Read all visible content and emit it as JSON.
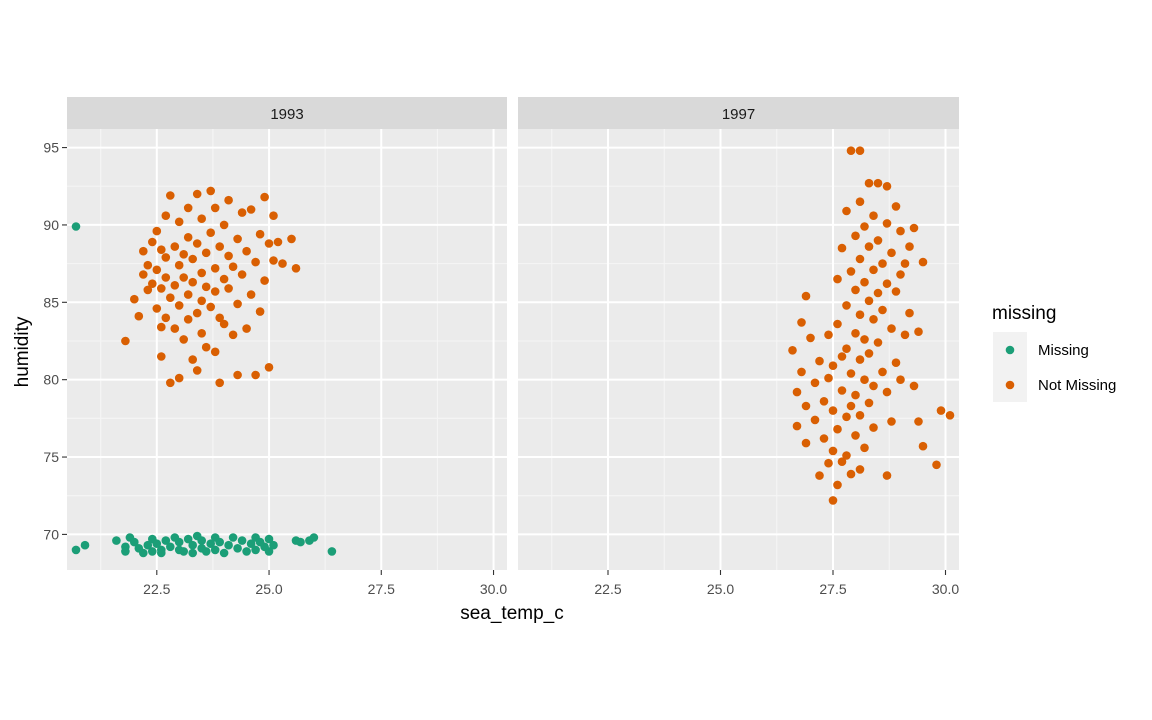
{
  "chart_data": {
    "type": "scatter",
    "xlabel": "sea_temp_c",
    "ylabel": "humidity",
    "xlim": [
      20.5,
      30.3
    ],
    "ylim": [
      67.7,
      96.2
    ],
    "x_ticks": [
      "22.5",
      "25.0",
      "27.5",
      "30.0"
    ],
    "y_ticks": [
      "70",
      "75",
      "80",
      "85",
      "90",
      "95"
    ],
    "grid": true,
    "legend": {
      "title": "missing",
      "position": "right",
      "entries": [
        {
          "label": "Missing",
          "color": "#1B9E77"
        },
        {
          "label": "Not Missing",
          "color": "#D95F02"
        }
      ]
    },
    "facets": [
      {
        "label": "1993",
        "series": [
          {
            "name": "Missing",
            "points": [
              [
                20.7,
                89.9
              ],
              [
                20.7,
                69.0
              ],
              [
                20.9,
                69.3
              ],
              [
                21.6,
                69.6
              ],
              [
                21.8,
                69.2
              ],
              [
                21.8,
                68.9
              ],
              [
                21.9,
                69.8
              ],
              [
                22.0,
                69.5
              ],
              [
                22.1,
                69.1
              ],
              [
                22.2,
                68.8
              ],
              [
                22.3,
                69.3
              ],
              [
                22.4,
                69.7
              ],
              [
                22.4,
                68.9
              ],
              [
                22.5,
                69.4
              ],
              [
                22.6,
                69.0
              ],
              [
                22.6,
                68.8
              ],
              [
                22.7,
                69.6
              ],
              [
                22.8,
                69.2
              ],
              [
                22.9,
                69.8
              ],
              [
                23.0,
                69.0
              ],
              [
                23.0,
                69.5
              ],
              [
                23.1,
                68.9
              ],
              [
                23.2,
                69.7
              ],
              [
                23.3,
                69.3
              ],
              [
                23.3,
                68.8
              ],
              [
                23.4,
                69.9
              ],
              [
                23.5,
                69.1
              ],
              [
                23.5,
                69.6
              ],
              [
                23.6,
                68.9
              ],
              [
                23.7,
                69.4
              ],
              [
                23.8,
                69.8
              ],
              [
                23.8,
                69.0
              ],
              [
                23.9,
                69.5
              ],
              [
                24.0,
                68.8
              ],
              [
                24.1,
                69.3
              ],
              [
                24.2,
                69.8
              ],
              [
                24.3,
                69.1
              ],
              [
                24.4,
                69.6
              ],
              [
                24.5,
                68.9
              ],
              [
                24.6,
                69.4
              ],
              [
                24.7,
                69.8
              ],
              [
                24.7,
                69.0
              ],
              [
                24.8,
                69.5
              ],
              [
                24.9,
                69.2
              ],
              [
                25.0,
                69.7
              ],
              [
                25.0,
                68.9
              ],
              [
                25.1,
                69.3
              ],
              [
                25.6,
                69.6
              ],
              [
                25.7,
                69.5
              ],
              [
                25.9,
                69.6
              ],
              [
                26.0,
                69.8
              ],
              [
                26.4,
                68.9
              ]
            ]
          },
          {
            "name": "Not Missing",
            "points": [
              [
                21.8,
                82.5
              ],
              [
                22.0,
                85.2
              ],
              [
                22.1,
                84.1
              ],
              [
                22.2,
                86.8
              ],
              [
                22.2,
                88.3
              ],
              [
                22.3,
                85.8
              ],
              [
                22.3,
                87.4
              ],
              [
                22.4,
                86.2
              ],
              [
                22.4,
                88.9
              ],
              [
                22.5,
                84.6
              ],
              [
                22.5,
                87.1
              ],
              [
                22.5,
                89.6
              ],
              [
                22.6,
                83.4
              ],
              [
                22.6,
                85.9
              ],
              [
                22.6,
                88.4
              ],
              [
                22.6,
                81.5
              ],
              [
                22.7,
                86.6
              ],
              [
                22.7,
                90.6
              ],
              [
                22.7,
                84.0
              ],
              [
                22.7,
                87.9
              ],
              [
                22.8,
                91.9
              ],
              [
                22.8,
                79.8
              ],
              [
                22.8,
                85.3
              ],
              [
                22.9,
                88.6
              ],
              [
                22.9,
                86.1
              ],
              [
                22.9,
                83.3
              ],
              [
                23.0,
                90.2
              ],
              [
                23.0,
                87.4
              ],
              [
                23.0,
                80.1
              ],
              [
                23.0,
                84.8
              ],
              [
                23.1,
                88.1
              ],
              [
                23.1,
                86.6
              ],
              [
                23.1,
                82.6
              ],
              [
                23.2,
                91.1
              ],
              [
                23.2,
                89.2
              ],
              [
                23.2,
                85.5
              ],
              [
                23.2,
                83.9
              ],
              [
                23.3,
                87.8
              ],
              [
                23.3,
                81.3
              ],
              [
                23.3,
                86.3
              ],
              [
                23.4,
                92.0
              ],
              [
                23.4,
                84.3
              ],
              [
                23.4,
                88.8
              ],
              [
                23.4,
                80.6
              ],
              [
                23.5,
                86.9
              ],
              [
                23.5,
                83.0
              ],
              [
                23.5,
                90.4
              ],
              [
                23.5,
                85.1
              ],
              [
                23.6,
                88.2
              ],
              [
                23.6,
                82.1
              ],
              [
                23.6,
                86.0
              ],
              [
                23.7,
                92.2
              ],
              [
                23.7,
                84.7
              ],
              [
                23.7,
                89.5
              ],
              [
                23.8,
                87.2
              ],
              [
                23.8,
                81.8
              ],
              [
                23.8,
                85.7
              ],
              [
                23.8,
                91.1
              ],
              [
                23.9,
                79.8
              ],
              [
                23.9,
                88.6
              ],
              [
                23.9,
                84.0
              ],
              [
                24.0,
                86.5
              ],
              [
                24.0,
                90.0
              ],
              [
                24.0,
                83.6
              ],
              [
                24.1,
                88.0
              ],
              [
                24.1,
                85.9
              ],
              [
                24.1,
                91.6
              ],
              [
                24.2,
                82.9
              ],
              [
                24.2,
                87.3
              ],
              [
                24.3,
                80.3
              ],
              [
                24.3,
                89.1
              ],
              [
                24.3,
                84.9
              ],
              [
                24.4,
                86.8
              ],
              [
                24.4,
                90.8
              ],
              [
                24.5,
                88.3
              ],
              [
                24.5,
                83.3
              ],
              [
                24.6,
                85.5
              ],
              [
                24.6,
                91.0
              ],
              [
                24.7,
                87.6
              ],
              [
                24.7,
                80.3
              ],
              [
                24.8,
                89.4
              ],
              [
                24.8,
                84.4
              ],
              [
                24.9,
                86.4
              ],
              [
                24.9,
                91.8
              ],
              [
                25.0,
                88.8
              ],
              [
                25.0,
                80.8
              ],
              [
                25.1,
                90.6
              ],
              [
                25.1,
                87.7
              ],
              [
                25.2,
                88.9
              ],
              [
                25.3,
                87.5
              ],
              [
                25.5,
                89.1
              ],
              [
                25.6,
                87.2
              ]
            ]
          }
        ]
      },
      {
        "label": "1997",
        "series": [
          {
            "name": "Missing",
            "points": []
          },
          {
            "name": "Not Missing",
            "points": [
              [
                26.6,
                81.9
              ],
              [
                26.7,
                79.2
              ],
              [
                26.7,
                77.0
              ],
              [
                26.8,
                83.7
              ],
              [
                26.8,
                80.5
              ],
              [
                26.9,
                78.3
              ],
              [
                26.9,
                75.9
              ],
              [
                26.9,
                85.4
              ],
              [
                27.0,
                82.7
              ],
              [
                27.1,
                79.8
              ],
              [
                27.1,
                77.4
              ],
              [
                27.2,
                73.8
              ],
              [
                27.2,
                81.2
              ],
              [
                27.3,
                78.6
              ],
              [
                27.3,
                76.2
              ],
              [
                27.4,
                80.1
              ],
              [
                27.4,
                74.6
              ],
              [
                27.4,
                82.9
              ],
              [
                27.5,
                72.2
              ],
              [
                27.5,
                78.0
              ],
              [
                27.5,
                75.4
              ],
              [
                27.5,
                80.9
              ],
              [
                27.6,
                86.5
              ],
              [
                27.6,
                83.6
              ],
              [
                27.6,
                76.8
              ],
              [
                27.6,
                73.2
              ],
              [
                27.7,
                88.5
              ],
              [
                27.7,
                81.5
              ],
              [
                27.7,
                79.3
              ],
              [
                27.7,
                74.7
              ],
              [
                27.8,
                90.9
              ],
              [
                27.8,
                84.8
              ],
              [
                27.8,
                82.0
              ],
              [
                27.8,
                77.6
              ],
              [
                27.8,
                75.1
              ],
              [
                27.9,
                87.0
              ],
              [
                27.9,
                80.4
              ],
              [
                27.9,
                78.3
              ],
              [
                27.9,
                73.9
              ],
              [
                27.9,
                94.8
              ],
              [
                28.0,
                89.3
              ],
              [
                28.0,
                85.8
              ],
              [
                28.0,
                83.0
              ],
              [
                28.0,
                79.0
              ],
              [
                28.0,
                76.4
              ],
              [
                28.1,
                91.5
              ],
              [
                28.1,
                87.8
              ],
              [
                28.1,
                84.2
              ],
              [
                28.1,
                81.3
              ],
              [
                28.1,
                77.7
              ],
              [
                28.1,
                74.2
              ],
              [
                28.1,
                94.8
              ],
              [
                28.2,
                89.9
              ],
              [
                28.2,
                86.3
              ],
              [
                28.2,
                82.6
              ],
              [
                28.2,
                80.0
              ],
              [
                28.2,
                75.6
              ],
              [
                28.3,
                92.7
              ],
              [
                28.3,
                88.6
              ],
              [
                28.3,
                85.1
              ],
              [
                28.3,
                81.7
              ],
              [
                28.3,
                78.5
              ],
              [
                28.4,
                90.6
              ],
              [
                28.4,
                87.1
              ],
              [
                28.4,
                83.9
              ],
              [
                28.4,
                79.6
              ],
              [
                28.4,
                76.9
              ],
              [
                28.5,
                92.7
              ],
              [
                28.5,
                89.0
              ],
              [
                28.5,
                85.6
              ],
              [
                28.5,
                82.4
              ],
              [
                28.6,
                87.5
              ],
              [
                28.6,
                84.5
              ],
              [
                28.6,
                80.5
              ],
              [
                28.7,
                92.5
              ],
              [
                28.7,
                90.1
              ],
              [
                28.7,
                86.2
              ],
              [
                28.7,
                79.2
              ],
              [
                28.7,
                73.8
              ],
              [
                28.8,
                88.2
              ],
              [
                28.8,
                83.3
              ],
              [
                28.8,
                77.3
              ],
              [
                28.9,
                91.2
              ],
              [
                28.9,
                85.7
              ],
              [
                28.9,
                81.1
              ],
              [
                29.0,
                89.6
              ],
              [
                29.0,
                86.8
              ],
              [
                29.0,
                80.0
              ],
              [
                29.1,
                87.5
              ],
              [
                29.1,
                82.9
              ],
              [
                29.2,
                88.6
              ],
              [
                29.2,
                84.3
              ],
              [
                29.3,
                89.8
              ],
              [
                29.3,
                79.6
              ],
              [
                29.4,
                83.1
              ],
              [
                29.4,
                77.3
              ],
              [
                29.5,
                87.6
              ],
              [
                29.5,
                75.7
              ],
              [
                29.8,
                74.5
              ],
              [
                29.9,
                78.0
              ],
              [
                30.1,
                77.7
              ]
            ]
          }
        ]
      }
    ]
  }
}
